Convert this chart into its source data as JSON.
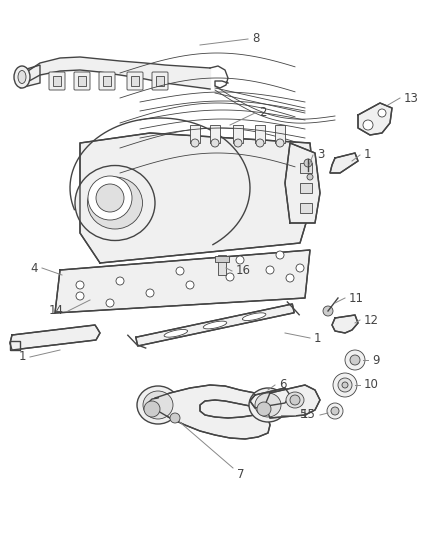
{
  "bg_color": "#ffffff",
  "fig_width": 4.38,
  "fig_height": 5.33,
  "dpi": 100,
  "line_color": "#444444",
  "label_color": "#444444",
  "leader_color": "#888888",
  "font_size": 8.5,
  "lw_main": 1.0,
  "lw_thin": 0.6,
  "fill_light": "#f0f0f0",
  "fill_mid": "#e0e0e0",
  "fill_dark": "#cccccc"
}
